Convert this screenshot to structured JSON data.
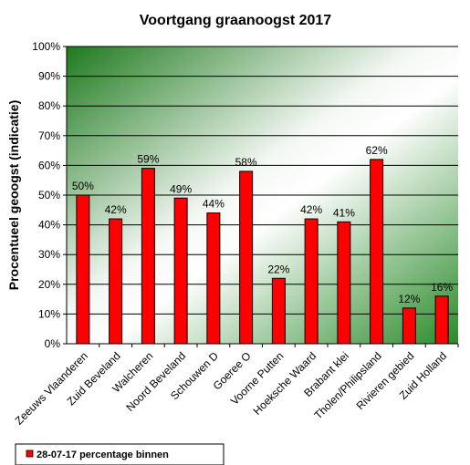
{
  "chart_data": {
    "type": "bar",
    "title": "Voortgang graanoogst 2017",
    "ylabel": "Procentueel geoogst (indicatie)",
    "xlabel": "",
    "ylim": [
      0,
      100
    ],
    "yticks": [
      "0%",
      "10%",
      "20%",
      "30%",
      "40%",
      "50%",
      "60%",
      "70%",
      "80%",
      "90%",
      "100%"
    ],
    "categories": [
      "Zeeuws Vlaanderen",
      "Zuid Beveland",
      "Walcheren",
      "Noord Beveland",
      "Schouwen D",
      "Goeree O",
      "Voorne Putten",
      "Hoeksche Waard",
      "Brabant klei",
      "Tholen/Philipsland",
      "Rivieren gebied",
      "Zuid Holland"
    ],
    "series": [
      {
        "name": "28-07-17 percentage binnen",
        "values": [
          50,
          42,
          59,
          49,
          44,
          58,
          22,
          42,
          41,
          62,
          12,
          16
        ],
        "labels": [
          "50%",
          "42%",
          "59%",
          "49%",
          "44%",
          "58%",
          "22%",
          "42%",
          "41%",
          "62%",
          "12%",
          "16%"
        ],
        "color": "#ff0000"
      }
    ],
    "grid": true,
    "legend_position": "bottom-left",
    "background_colors": [
      "#1e7a1e",
      "#ffffff"
    ]
  }
}
